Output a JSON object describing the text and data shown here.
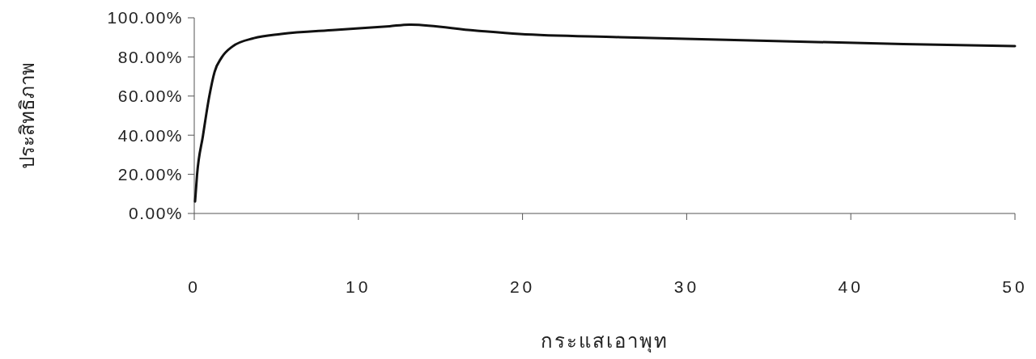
{
  "chart_data": {
    "type": "line",
    "xlabel": "กระแสเอาพุท",
    "ylabel": "ประสิทธิภาพ",
    "x": [
      0.05,
      0.17,
      0.53,
      0.91,
      1.24,
      1.66,
      2.32,
      3.64,
      5.3,
      8.6,
      11.9,
      13.1,
      17.1,
      19.8,
      25.9,
      33.9,
      43.2,
      50
    ],
    "series": [
      {
        "color": "#111111",
        "values": [
          6.1,
          19.7,
          39.7,
          59.6,
          72.4,
          79.6,
          85.3,
          89.6,
          91.7,
          93.8,
          95.7,
          96.5,
          93.5,
          91.7,
          90.1,
          88.4,
          86.6,
          85.5
        ]
      }
    ],
    "xlim": [
      0,
      50
    ],
    "xticks": [
      0,
      10,
      20,
      30,
      40,
      50
    ],
    "ylim": [
      0,
      100
    ],
    "yticks": [
      {
        "value": 0,
        "label": "0.00%"
      },
      {
        "value": 20,
        "label": "20.00%"
      },
      {
        "value": 40,
        "label": "40.00%"
      },
      {
        "value": 60,
        "label": "60.00%"
      },
      {
        "value": 80,
        "label": "80.00%"
      },
      {
        "value": 100,
        "label": "100.00%"
      }
    ],
    "grid": false,
    "marker": "none",
    "line_style": "solid"
  }
}
